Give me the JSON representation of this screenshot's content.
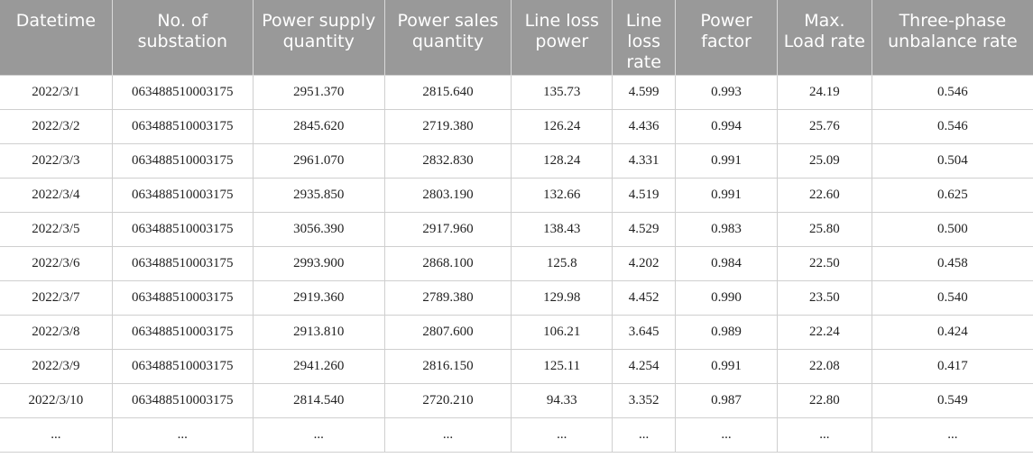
{
  "table": {
    "headers": [
      "Datetime",
      "No. of substation",
      "Power supply quantity",
      "Power sales quantity",
      "Line loss power",
      "Line loss rate",
      "Power factor",
      "Max. Load rate",
      "Three-phase unbalance rate"
    ],
    "rows": [
      [
        "2022/3/1",
        "063488510003175",
        "2951.370",
        "2815.640",
        "135.73",
        "4.599",
        "0.993",
        "24.19",
        "0.546"
      ],
      [
        "2022/3/2",
        "063488510003175",
        "2845.620",
        "2719.380",
        "126.24",
        "4.436",
        "0.994",
        "25.76",
        "0.546"
      ],
      [
        "2022/3/3",
        "063488510003175",
        "2961.070",
        "2832.830",
        "128.24",
        "4.331",
        "0.991",
        "25.09",
        "0.504"
      ],
      [
        "2022/3/4",
        "063488510003175",
        "2935.850",
        "2803.190",
        "132.66",
        "4.519",
        "0.991",
        "22.60",
        "0.625"
      ],
      [
        "2022/3/5",
        "063488510003175",
        "3056.390",
        "2917.960",
        "138.43",
        "4.529",
        "0.983",
        "25.80",
        "0.500"
      ],
      [
        "2022/3/6",
        "063488510003175",
        "2993.900",
        "2868.100",
        "125.8",
        "4.202",
        "0.984",
        "22.50",
        "0.458"
      ],
      [
        "2022/3/7",
        "063488510003175",
        "2919.360",
        "2789.380",
        "129.98",
        "4.452",
        "0.990",
        "23.50",
        "0.540"
      ],
      [
        "2022/3/8",
        "063488510003175",
        "2913.810",
        "2807.600",
        "106.21",
        "3.645",
        "0.989",
        "22.24",
        "0.424"
      ],
      [
        "2022/3/9",
        "063488510003175",
        "2941.260",
        "2816.150",
        "125.11",
        "4.254",
        "0.991",
        "22.08",
        "0.417"
      ],
      [
        "2022/3/10",
        "063488510003175",
        "2814.540",
        "2720.210",
        "94.33",
        "3.352",
        "0.987",
        "22.80",
        "0.549"
      ],
      [
        "...",
        "...",
        "...",
        "...",
        "...",
        "...",
        "...",
        "...",
        "..."
      ]
    ]
  }
}
